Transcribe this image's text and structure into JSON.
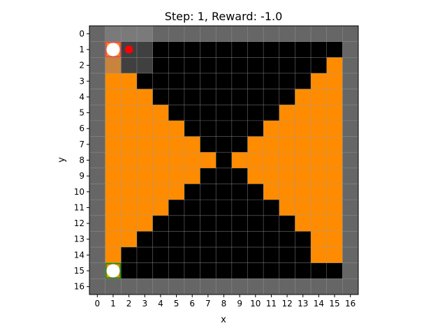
{
  "title": "Step: 1, Reward: -1.0",
  "xlabel": "x",
  "ylabel": "y",
  "grid": {
    "cols": 17,
    "rows": 17,
    "x_ticks": [
      0,
      1,
      2,
      3,
      4,
      5,
      6,
      7,
      8,
      9,
      10,
      11,
      12,
      13,
      14,
      15,
      16
    ],
    "y_ticks": [
      0,
      1,
      2,
      3,
      4,
      5,
      6,
      7,
      8,
      9,
      10,
      11,
      12,
      13,
      14,
      15,
      16
    ],
    "legend": {
      "W": "wall",
      "B": "lava",
      "O": "floor",
      "D": "visited",
      "V": "visited-floor"
    },
    "cells": [
      "WWWWWWWWWWWWWWWWW",
      "WODDBBBBBBBBBBBBW",
      "WVDDBBBBBBBBBBBOW",
      "WOOBBBBBBBBBBBOOW",
      "WOOOBBBBBBBBBOOOW",
      "WOOOOBBBBBBBOOOOW",
      "WOOOOOBBBBBOOOOOW",
      "WOOOOOOBBBOOOOOOW",
      "WOOOOOOOBOOOOOOOW",
      "WOOOOOOBBBOOOOOOW",
      "WOOOOOBBBBBOOOOOW",
      "WOOOOBBBBBBBOOOOW",
      "WOOOBBBBBBBBBOOOW",
      "WOOBBBBBBBBBBBOOW",
      "WOBBBBBBBBBBBBOOW",
      "WOBBBBBBBBBBBBBBW",
      "WWWWWWWWWWWWWWWWW"
    ]
  },
  "colors": {
    "wall": "#666666",
    "wall_light": "#7a7a7a",
    "lava": "#000000",
    "floor": "#ff8c00",
    "visited": "#404040",
    "visited_floor": "#c8843c",
    "gridline": "#9a9a9a",
    "agent_border": "#e0505a",
    "goal_border": "#1f8f1f",
    "marker": "#ff0000",
    "circle": "#ffffff"
  },
  "agent": {
    "x": 1,
    "y": 1
  },
  "goal": {
    "x": 1,
    "y": 15
  },
  "marker": {
    "x": 2,
    "y": 1
  }
}
